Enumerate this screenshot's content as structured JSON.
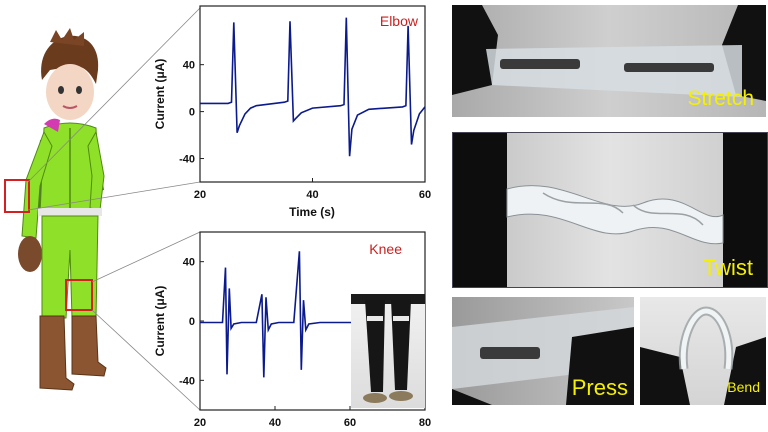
{
  "charts": {
    "elbow": {
      "title": "Elbow",
      "ylabel": "Current (μA)",
      "xlabel": "Time (s)"
    },
    "knee": {
      "title": "Knee",
      "ylabel": "Current (μA)",
      "xlabel": ""
    }
  },
  "photos": {
    "stretch": {
      "label": "Stretch"
    },
    "twist": {
      "label": "Twist"
    },
    "press": {
      "label": "Press"
    },
    "bend": {
      "label": "Bend"
    }
  },
  "colors": {
    "trace": "#0b1a8c",
    "title": "#cc1f1f",
    "photo_label": "#f5f000",
    "marker_box": "#d42020"
  },
  "chart_data": [
    {
      "type": "line",
      "title": "Elbow",
      "xlabel": "Time (s)",
      "ylabel": "Current (μA)",
      "xlim": [
        20,
        60
      ],
      "ylim": [
        -60,
        90
      ],
      "x_ticks": [
        20,
        40,
        60
      ],
      "y_ticks": [
        -40,
        0,
        40
      ],
      "grid": false,
      "series": [
        {
          "x": [
            20,
            25,
            25.6,
            26,
            26.6,
            27,
            28,
            29,
            30,
            35,
            35.6,
            36,
            36.6,
            37,
            38,
            40,
            45,
            45.6,
            46,
            46.6,
            47,
            48,
            50,
            56,
            56.6,
            57,
            57.6,
            58,
            59,
            60
          ],
          "y": [
            7,
            7,
            8,
            76,
            -18,
            -12,
            -2,
            3,
            5,
            8,
            9,
            77,
            -8,
            -6,
            -1,
            3,
            5,
            6,
            80,
            -38,
            -15,
            -3,
            2,
            4,
            5,
            73,
            -28,
            -16,
            -2,
            4
          ]
        }
      ]
    },
    {
      "type": "line",
      "title": "Knee",
      "xlabel": "",
      "ylabel": "Current (μA)",
      "xlim": [
        20,
        80
      ],
      "ylim": [
        -60,
        60
      ],
      "x_ticks": [
        20,
        40,
        60,
        80
      ],
      "y_ticks": [
        -40,
        0,
        40
      ],
      "grid": false,
      "series": [
        {
          "x": [
            20,
            26,
            26.8,
            27.2,
            27.8,
            28.3,
            29,
            31,
            35,
            36.5,
            37,
            37.6,
            38.2,
            39,
            41,
            45,
            46.5,
            47,
            47.6,
            48.2,
            49,
            52,
            58,
            60,
            62,
            70,
            80
          ],
          "y": [
            -1,
            -1,
            36,
            -36,
            22,
            -5,
            -2,
            -1,
            -1,
            18,
            -38,
            16,
            -6,
            -2,
            -1,
            -1,
            47,
            -33,
            14,
            -6,
            -2,
            -1,
            -1,
            -1,
            -1,
            -1,
            -1
          ]
        }
      ]
    }
  ]
}
